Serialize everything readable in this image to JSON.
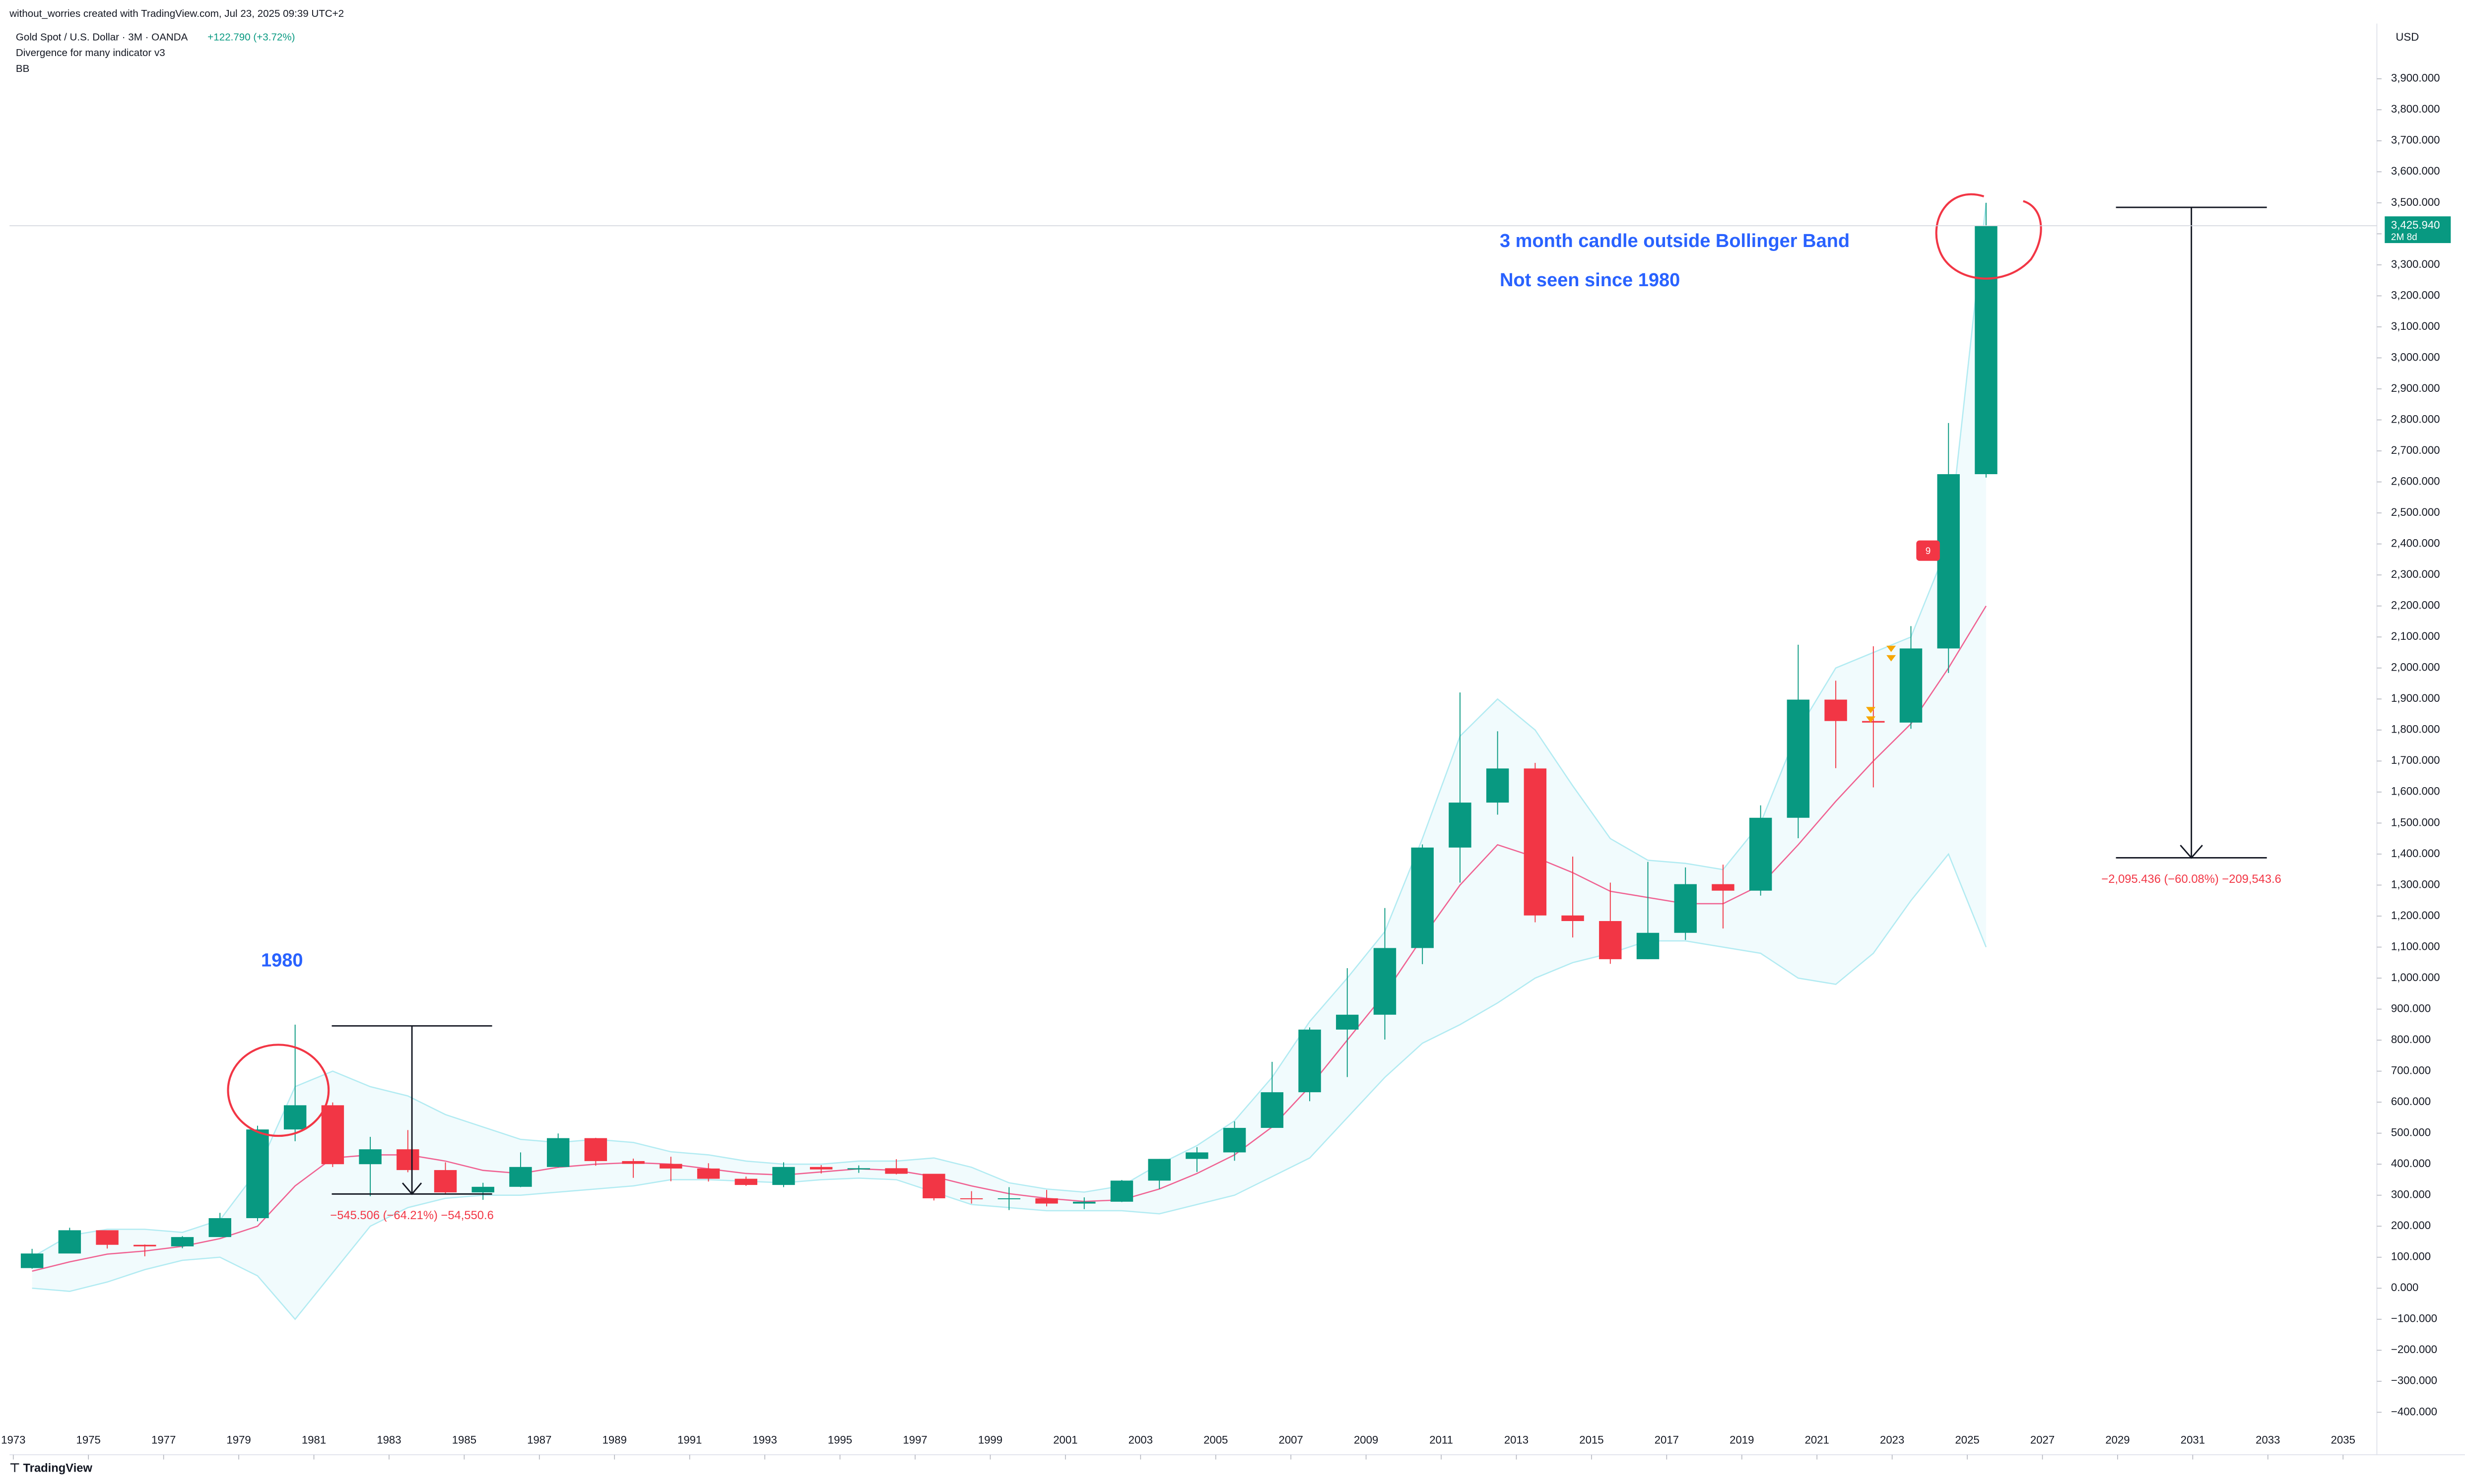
{
  "chart_data": {
    "type": "candlestick",
    "header": {
      "credit": "without_worries created with TradingView.com, Jul 23, 2025 09:39 UTC+2",
      "symbol": "Gold Spot / U.S. Dollar · 3M · OANDA",
      "change": "+122.790 (+3.72%)",
      "indicator_1": "Divergence for many indicator v3",
      "indicator_2": "BB"
    },
    "currency": "USD",
    "last_price": {
      "value": 3425.94,
      "label": "3,425.940",
      "countdown": "2M 8d"
    },
    "annotations": {
      "note_1": "3 month candle outside Bollinger Band",
      "note_2": "Not seen since 1980",
      "note_3": "1980",
      "measure_1": "−545.506 (−64.21%) −54,550.6",
      "measure_2": "−2,095.436 (−60.08%) −209,543.6",
      "signal": "9"
    },
    "logo": "TradingView",
    "up_color": "#089981",
    "down_color": "#f23645",
    "x": [
      1973,
      1974,
      1975,
      1976,
      1977,
      1978,
      1979,
      1980,
      1981,
      1982,
      1983,
      1984,
      1985,
      1986,
      1987,
      1988,
      1989,
      1990,
      1991,
      1992,
      1993,
      1994,
      1995,
      1996,
      1997,
      1998,
      1999,
      2000,
      2001,
      2002,
      2003,
      2004,
      2005,
      2006,
      2007,
      2008,
      2009,
      2010,
      2011,
      2012,
      2013,
      2014,
      2015,
      2016,
      2017,
      2018,
      2019,
      2020,
      2021,
      2022,
      2023,
      2024,
      2025
    ],
    "open": [
      65,
      112,
      187,
      140,
      135,
      165,
      226,
      512,
      590,
      400,
      448,
      381,
      309,
      327,
      391,
      484,
      410,
      401,
      386,
      353,
      333,
      391,
      383,
      387,
      369,
      290,
      288,
      290,
      273,
      279,
      347,
      417,
      438,
      517,
      632,
      834,
      882,
      1097,
      1421,
      1566,
      1676,
      1202,
      1184,
      1061,
      1146,
      1303,
      1282,
      1517,
      1898,
      1829,
      1824,
      2063,
      2625
    ],
    "high": [
      127,
      195,
      186,
      141,
      168,
      243,
      524,
      850,
      599,
      488,
      510,
      406,
      340,
      438,
      499,
      485,
      418,
      424,
      403,
      360,
      406,
      397,
      396,
      416,
      367,
      313,
      326,
      317,
      293,
      349,
      417,
      455,
      538,
      730,
      841,
      1032,
      1226,
      1431,
      1921,
      1796,
      1694,
      1392,
      1308,
      1375,
      1357,
      1366,
      1557,
      2075,
      1959,
      2070,
      2135,
      2790,
      3500
    ],
    "low": [
      63,
      115,
      128,
      103,
      129,
      165,
      216,
      474,
      391,
      297,
      374,
      303,
      285,
      326,
      390,
      395,
      356,
      345,
      344,
      330,
      326,
      370,
      372,
      367,
      283,
      273,
      252,
      264,
      255,
      278,
      320,
      375,
      411,
      524,
      603,
      681,
      802,
      1045,
      1308,
      1527,
      1180,
      1131,
      1046,
      1061,
      1123,
      1160,
      1266,
      1451,
      1677,
      1615,
      1804,
      1984,
      2614
    ],
    "close": [
      112,
      187,
      140,
      135,
      165,
      226,
      512,
      590,
      400,
      448,
      381,
      309,
      327,
      391,
      484,
      410,
      401,
      386,
      353,
      333,
      391,
      383,
      387,
      369,
      290,
      288,
      290,
      273,
      279,
      347,
      417,
      438,
      517,
      632,
      834,
      882,
      1097,
      1421,
      1566,
      1676,
      1202,
      1184,
      1061,
      1146,
      1303,
      1282,
      1517,
      1898,
      1829,
      1824,
      2063,
      2625,
      3426
    ],
    "bands": {
      "upper": [
        100,
        170,
        190,
        190,
        180,
        220,
        380,
        650,
        700,
        650,
        620,
        560,
        520,
        480,
        470,
        480,
        470,
        440,
        430,
        410,
        400,
        400,
        410,
        410,
        420,
        390,
        340,
        320,
        310,
        330,
        400,
        460,
        540,
        680,
        860,
        1000,
        1150,
        1450,
        1780,
        1900,
        1800,
        1620,
        1450,
        1380,
        1370,
        1350,
        1500,
        1800,
        2000,
        2050,
        2100,
        2400,
        3500
      ],
      "basis": [
        55,
        85,
        110,
        120,
        135,
        160,
        200,
        330,
        420,
        430,
        430,
        410,
        380,
        370,
        390,
        400,
        405,
        400,
        385,
        370,
        365,
        375,
        385,
        380,
        360,
        330,
        305,
        290,
        280,
        285,
        320,
        370,
        430,
        520,
        650,
        800,
        950,
        1130,
        1300,
        1430,
        1390,
        1340,
        1280,
        1260,
        1240,
        1240,
        1300,
        1430,
        1570,
        1700,
        1820,
        2000,
        2200
      ],
      "lower": [
        0,
        -10,
        20,
        60,
        90,
        100,
        40,
        -100,
        50,
        200,
        260,
        290,
        300,
        300,
        310,
        320,
        330,
        350,
        350,
        345,
        340,
        350,
        355,
        350,
        310,
        270,
        260,
        250,
        250,
        250,
        240,
        270,
        300,
        360,
        420,
        550,
        680,
        790,
        850,
        920,
        1000,
        1050,
        1080,
        1120,
        1120,
        1100,
        1080,
        1000,
        980,
        1080,
        1250,
        1400,
        1100
      ],
      "band_color": "#b2ebf2",
      "basis_color": "#f06292"
    },
    "xlim": [
      1972.9,
      2035.9
    ],
    "xticks": [
      1973,
      1975,
      1977,
      1979,
      1981,
      1983,
      1985,
      1987,
      1989,
      1991,
      1993,
      1995,
      1997,
      1999,
      2001,
      2003,
      2005,
      2007,
      2009,
      2011,
      2013,
      2015,
      2017,
      2019,
      2021,
      2023,
      2025,
      2027,
      2029,
      2031,
      2033,
      2035
    ],
    "ylim": [
      -456,
      4078
    ],
    "yticks": [
      {
        "value": -400,
        "label": "−400.000"
      },
      {
        "value": -300,
        "label": "−300.000"
      },
      {
        "value": -200,
        "label": "−200.000"
      },
      {
        "value": -100,
        "label": "−100.000"
      },
      {
        "value": 0,
        "label": "0.000"
      },
      {
        "value": 100,
        "label": "100.000"
      },
      {
        "value": 200,
        "label": "200.000"
      },
      {
        "value": 300,
        "label": "300.000"
      },
      {
        "value": 400,
        "label": "400.000"
      },
      {
        "value": 500,
        "label": "500.000"
      },
      {
        "value": 600,
        "label": "600.000"
      },
      {
        "value": 700,
        "label": "700.000"
      },
      {
        "value": 800,
        "label": "800.000"
      },
      {
        "value": 900,
        "label": "900.000"
      },
      {
        "value": 1000,
        "label": "1,000.000"
      },
      {
        "value": 1100,
        "label": "1,100.000"
      },
      {
        "value": 1200,
        "label": "1,200.000"
      },
      {
        "value": 1300,
        "label": "1,300.000"
      },
      {
        "value": 1400,
        "label": "1,400.000"
      },
      {
        "value": 1500,
        "label": "1,500.000"
      },
      {
        "value": 1600,
        "label": "1,600.000"
      },
      {
        "value": 1700,
        "label": "1,700.000"
      },
      {
        "value": 1800,
        "label": "1,800.000"
      },
      {
        "value": 1900,
        "label": "1,900.000"
      },
      {
        "value": 2000,
        "label": "2,000.000"
      },
      {
        "value": 2100,
        "label": "2,100.000"
      },
      {
        "value": 2200,
        "label": "2,200.000"
      },
      {
        "value": 2300,
        "label": "2,300.000"
      },
      {
        "value": 2400,
        "label": "2,400.000"
      },
      {
        "value": 2500,
        "label": "2,500.000"
      },
      {
        "value": 2600,
        "label": "2,600.000"
      },
      {
        "value": 2700,
        "label": "2,700.000"
      },
      {
        "value": 2800,
        "label": "2,800.000"
      },
      {
        "value": 2900,
        "label": "2,900.000"
      },
      {
        "value": 3000,
        "label": "3,000.000"
      },
      {
        "value": 3100,
        "label": "3,100.000"
      },
      {
        "value": 3200,
        "label": "3,200.000"
      },
      {
        "value": 3300,
        "label": "3,300.000"
      },
      {
        "value": 3400,
        "label": "3,400.000"
      },
      {
        "value": 3500,
        "label": "3,500.000"
      },
      {
        "value": 3600,
        "label": "3,600.000"
      },
      {
        "value": 3700,
        "label": "3,700.000"
      },
      {
        "value": 3800,
        "label": "3,800.000"
      },
      {
        "value": 3900,
        "label": "3,900.000"
      }
    ],
    "grid": false
  }
}
